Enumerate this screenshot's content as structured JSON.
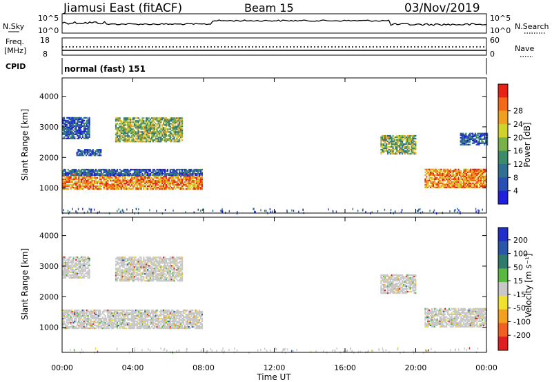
{
  "header": {
    "station": "Jiamusi East (fitACF)",
    "beam": "Beam 15",
    "date": "03/Nov/2019"
  },
  "nsky_panel": {
    "left_label": "N.Sky",
    "right_label": "N.Search",
    "left_ticks": [
      "10^5",
      "10^0"
    ],
    "right_ticks": [
      "10^5",
      "10^0"
    ]
  },
  "freq_panel": {
    "left_label": "Freq.",
    "left_unit": "[MHz]",
    "left_ticks": [
      "18",
      "8"
    ],
    "right_label": "Nave",
    "right_ticks": [
      "60",
      "0"
    ]
  },
  "cpid_panel": {
    "label": "CPID",
    "value": "normal (fast) 151"
  },
  "power_panel": {
    "ylabel": "Slant Range [km]",
    "yticks": [
      "1000",
      "2000",
      "3000",
      "4000"
    ],
    "colorbar": {
      "label": "Power [dB]",
      "ticks": [
        "4",
        "8",
        "12",
        "16",
        "20",
        "24",
        "28"
      ],
      "colors": [
        "#1f1fdc",
        "#2a4fb4",
        "#2f6f8f",
        "#3c8c6a",
        "#78b04a",
        "#d2d22c",
        "#f0a020",
        "#f26a18",
        "#e62314"
      ]
    }
  },
  "velocity_panel": {
    "ylabel": "Slant Range [km]",
    "yticks": [
      "1000",
      "2000",
      "3000",
      "4000"
    ],
    "colorbar": {
      "label": "Velocity [m s⁻¹]",
      "ticks": [
        "200",
        "100",
        "50",
        "15",
        "-15",
        "-50",
        "-100",
        "-200"
      ],
      "colors": [
        "#1f2fc8",
        "#2a56a8",
        "#2f7a6a",
        "#58b840",
        "#c8c8c8",
        "#f0e030",
        "#f2a020",
        "#f06020",
        "#e02020"
      ]
    }
  },
  "x_axis": {
    "label": "Time UT",
    "ticks": [
      "00:00",
      "04:00",
      "08:00",
      "12:00",
      "16:00",
      "20:00",
      "00:00"
    ]
  },
  "chart_data": [
    {
      "type": "heatmap",
      "title": "Power",
      "x_unit": "hours UT",
      "y_unit": "km",
      "xlim": [
        0,
        24
      ],
      "ylim": [
        180,
        4600
      ],
      "bands": [
        {
          "t0": 0.0,
          "t1": 7.9,
          "r0": 950,
          "r1": 1450,
          "value": "high"
        },
        {
          "t0": 0.0,
          "t1": 7.9,
          "r0": 1400,
          "r1": 1600,
          "value": "low"
        },
        {
          "t0": 0.0,
          "t1": 1.5,
          "r0": 2600,
          "r1": 3300,
          "value": "low"
        },
        {
          "t0": 0.8,
          "t1": 2.2,
          "r0": 2050,
          "r1": 2250,
          "value": "low"
        },
        {
          "t0": 3.0,
          "t1": 6.8,
          "r0": 2500,
          "r1": 3300,
          "value": "mid"
        },
        {
          "t0": 18.0,
          "t1": 20.0,
          "r0": 2100,
          "r1": 2700,
          "value": "mid"
        },
        {
          "t0": 20.5,
          "t1": 24.0,
          "r0": 1000,
          "r1": 1600,
          "value": "high"
        },
        {
          "t0": 22.5,
          "t1": 24.0,
          "r0": 2400,
          "r1": 2800,
          "value": "low"
        }
      ]
    },
    {
      "type": "heatmap",
      "title": "Velocity",
      "x_unit": "hours UT",
      "y_unit": "km",
      "xlim": [
        0,
        24
      ],
      "ylim": [
        180,
        4600
      ],
      "bands": [
        {
          "t0": 0.0,
          "t1": 7.9,
          "r0": 950,
          "r1": 1550,
          "value": "ground"
        },
        {
          "t0": 0.0,
          "t1": 1.5,
          "r0": 2600,
          "r1": 3300,
          "value": "ground"
        },
        {
          "t0": 3.0,
          "t1": 6.8,
          "r0": 2500,
          "r1": 3300,
          "value": "ground"
        },
        {
          "t0": 18.0,
          "t1": 20.0,
          "r0": 2100,
          "r1": 2700,
          "value": "ground"
        },
        {
          "t0": 20.5,
          "t1": 24.0,
          "r0": 1000,
          "r1": 1600,
          "value": "ground"
        }
      ]
    }
  ]
}
